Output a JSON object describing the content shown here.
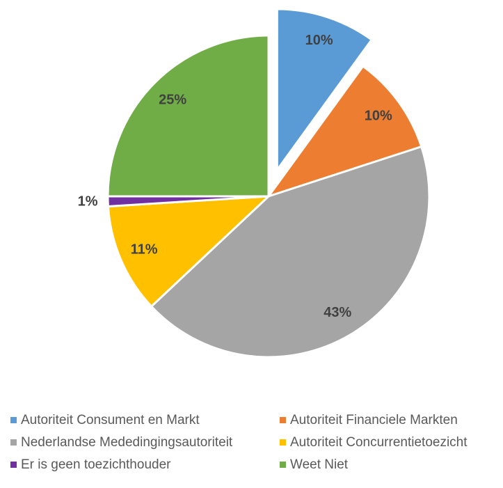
{
  "chart_data": {
    "type": "pie",
    "categories": [
      "Autoriteit Consument en Markt",
      "Autoriteit Financiele Markten",
      "Nederlandse Mededingingsautoriteit",
      "Autoriteit Concurrentietoezicht",
      "Er is geen toezichthouder",
      "Weet Niet"
    ],
    "values": [
      10,
      10,
      43,
      11,
      1,
      25
    ],
    "value_labels": [
      "10%",
      "10%",
      "43%",
      "11%",
      "1%",
      "25%"
    ],
    "colors": [
      "#5b9bd5",
      "#ed7d31",
      "#a5a5a5",
      "#ffc000",
      "#7030a0",
      "#70ad47"
    ],
    "exploded": [
      0
    ],
    "legend": "bottom"
  }
}
